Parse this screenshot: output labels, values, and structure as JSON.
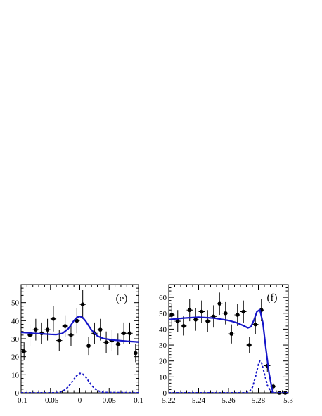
{
  "chart_data": [
    {
      "type": "scatter",
      "panel_label": "(e)",
      "xlim": [
        -0.1,
        0.1
      ],
      "ylim": [
        0,
        60
      ],
      "xticks": [
        -0.1,
        -0.05,
        0,
        0.05,
        0.1
      ],
      "xtick_labels": [
        "-0.1",
        "-0.05",
        "0",
        "0.05",
        "0.1"
      ],
      "yticks": [
        0,
        10,
        20,
        30,
        40,
        50
      ],
      "ytick_labels": [
        "0",
        "10",
        "20",
        "30",
        "40",
        "50"
      ],
      "grid": false,
      "data_color": "#000000",
      "fit_color": "#1515c8",
      "series": [
        {
          "kind": "data_points",
          "x": [
            -0.095,
            -0.085,
            -0.075,
            -0.065,
            -0.055,
            -0.045,
            -0.035,
            -0.025,
            -0.015,
            -0.005,
            0.005,
            0.015,
            0.025,
            0.035,
            0.045,
            0.055,
            0.065,
            0.075,
            0.085,
            0.095
          ],
          "y": [
            23,
            32,
            35,
            33,
            35,
            41,
            29,
            37,
            32,
            40,
            49,
            26,
            33,
            35,
            28,
            29,
            27,
            33,
            33,
            22
          ],
          "yerr": [
            5,
            6,
            6,
            6,
            6,
            7,
            6,
            6,
            6,
            7,
            8,
            5,
            6,
            6,
            6,
            6,
            6,
            6,
            6,
            5
          ]
        },
        {
          "kind": "total_fit",
          "style": "solid",
          "x": [
            -0.1,
            -0.09,
            -0.08,
            -0.07,
            -0.06,
            -0.05,
            -0.04,
            -0.03,
            -0.02,
            -0.015,
            -0.01,
            -0.005,
            0,
            0.005,
            0.01,
            0.015,
            0.02,
            0.03,
            0.04,
            0.05,
            0.06,
            0.07,
            0.08,
            0.09,
            0.1
          ],
          "y": [
            33.5,
            33.3,
            33.0,
            32.8,
            32.6,
            32.4,
            32.3,
            32.9,
            35.4,
            37.6,
            40.1,
            41.8,
            42.4,
            41.7,
            39.8,
            37.3,
            34.8,
            31.5,
            30.1,
            29.6,
            29.2,
            28.9,
            28.6,
            28.4,
            28.2
          ]
        },
        {
          "kind": "signal",
          "style": "dashed",
          "x": [
            -0.1,
            -0.04,
            -0.03,
            -0.025,
            -0.02,
            -0.015,
            -0.01,
            -0.005,
            0,
            0.005,
            0.01,
            0.015,
            0.02,
            0.025,
            0.03,
            0.04,
            0.1
          ],
          "y": [
            0,
            0,
            0.8,
            1.7,
            3.2,
            5.3,
            7.6,
            9.6,
            10.8,
            10.4,
            8.8,
            6.5,
            4.2,
            2.4,
            1.2,
            0.2,
            0
          ]
        }
      ]
    },
    {
      "type": "scatter",
      "panel_label": "(f)",
      "xlim": [
        5.22,
        5.3
      ],
      "ylim": [
        0,
        68
      ],
      "xticks": [
        5.22,
        5.24,
        5.26,
        5.28,
        5.3
      ],
      "xtick_labels": [
        "5.22",
        "5.24",
        "5.26",
        "5.28",
        "5.3"
      ],
      "yticks": [
        0,
        10,
        20,
        30,
        40,
        50,
        60
      ],
      "ytick_labels": [
        "0",
        "10",
        "20",
        "30",
        "40",
        "50",
        "60"
      ],
      "grid": false,
      "data_color": "#000000",
      "fit_color": "#1515c8",
      "series": [
        {
          "kind": "data_points",
          "x": [
            5.222,
            5.226,
            5.23,
            5.234,
            5.238,
            5.242,
            5.246,
            5.25,
            5.254,
            5.258,
            5.262,
            5.266,
            5.27,
            5.274,
            5.278,
            5.282,
            5.286,
            5.29,
            5.294,
            5.298
          ],
          "y": [
            49,
            45,
            42,
            52,
            46,
            51,
            45,
            48,
            56,
            50,
            37,
            49,
            51,
            30,
            43,
            52,
            17,
            4,
            0,
            0
          ],
          "yerr": [
            7,
            7,
            6,
            7,
            7,
            7,
            7,
            7,
            7,
            7,
            6,
            7,
            7,
            5,
            6,
            7,
            4,
            2,
            0,
            0
          ]
        },
        {
          "kind": "total_fit",
          "style": "solid",
          "x": [
            5.22,
            5.23,
            5.24,
            5.25,
            5.26,
            5.265,
            5.27,
            5.273,
            5.275,
            5.277,
            5.279,
            5.281,
            5.283,
            5.285,
            5.287,
            5.289,
            5.29
          ],
          "y": [
            46,
            47,
            47.5,
            47,
            45.5,
            44.2,
            42.2,
            40.8,
            41.5,
            45.6,
            51,
            52.2,
            44,
            28,
            13,
            3,
            0
          ]
        },
        {
          "kind": "signal",
          "style": "dashed",
          "x": [
            5.22,
            5.272,
            5.274,
            5.276,
            5.278,
            5.28,
            5.281,
            5.282,
            5.284,
            5.286,
            5.288,
            5.29,
            5.3
          ],
          "y": [
            0,
            0,
            0.8,
            3.4,
            9.8,
            17.7,
            20.2,
            19.2,
            12.2,
            4.8,
            1.2,
            0,
            0
          ]
        }
      ]
    }
  ]
}
